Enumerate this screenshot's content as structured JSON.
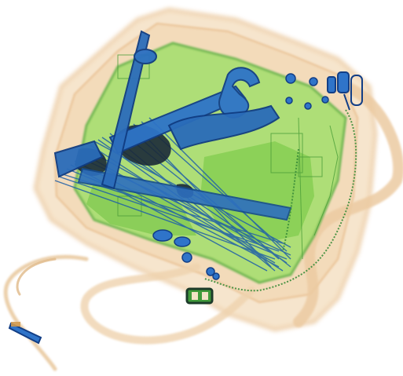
{
  "image": {
    "kind": "x-ray baggage scan",
    "background": "#ffffff",
    "palette": {
      "organic": "#f0d2a8",
      "organic_edge": "#e6b47e",
      "mixed": "#8fd65a",
      "mixed_dark": "#3f9a3a",
      "metal": "#2f74c9",
      "metal_dark": "#123e86",
      "dense": "#1f2b38"
    },
    "objects": [
      {
        "name": "carry-bag",
        "material": "organic"
      },
      {
        "name": "bag-strap",
        "material": "organic"
      },
      {
        "name": "laptop-board",
        "material": "mixed"
      },
      {
        "name": "wrench",
        "material": "metal"
      },
      {
        "name": "pliers",
        "material": "metal"
      },
      {
        "name": "cable-bundle",
        "material": "metal"
      },
      {
        "name": "zipper",
        "material": "mixed"
      },
      {
        "name": "buckle",
        "material": "mixed"
      },
      {
        "name": "strap-clip",
        "material": "metal"
      }
    ]
  }
}
